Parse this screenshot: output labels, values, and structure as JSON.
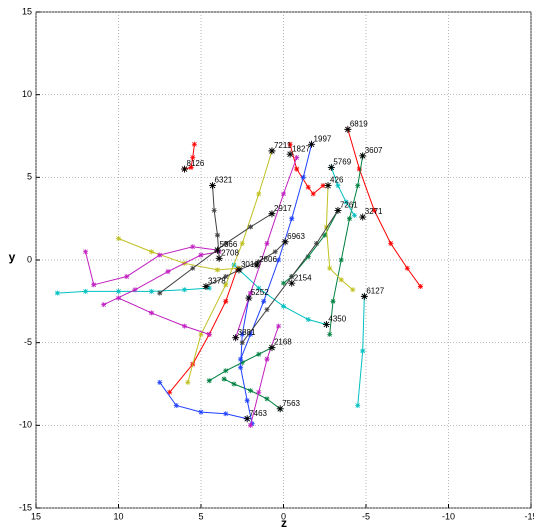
{
  "chart_data": {
    "type": "line",
    "xlabel": "z",
    "ylabel": "y",
    "xlim": [
      15,
      -15
    ],
    "ylim": [
      -15,
      15
    ],
    "xticks": [
      15,
      10,
      5,
      0,
      -5,
      -10,
      -15
    ],
    "yticks": [
      -15,
      -10,
      -5,
      0,
      5,
      10,
      15
    ],
    "grid": true,
    "series": [
      {
        "color": "#ff0000",
        "x": [
          5.4,
          5.5,
          5.6,
          6.0
        ],
        "values": [
          7.0,
          6.2,
          5.6,
          5.5
        ]
      },
      {
        "color": "#ff0000",
        "x": [
          -0.4,
          -0.8,
          -1.5,
          -1.8,
          -2.4
        ],
        "values": [
          7.0,
          5.5,
          4.4,
          4.0,
          4.5
        ]
      },
      {
        "color": "#ff0000",
        "x": [
          -3.9,
          -4.6,
          -5.5,
          -6.5,
          -7.5,
          -8.3
        ],
        "values": [
          7.9,
          5.5,
          3.0,
          1.0,
          -0.5,
          -1.6
        ]
      },
      {
        "color": "#ff0000",
        "x": [
          2.8,
          3.5,
          4.5,
          5.5,
          6.9
        ],
        "values": [
          -0.5,
          -2.5,
          -4.5,
          -6.3,
          -8.0
        ]
      },
      {
        "color": "#008040",
        "x": [
          -4.8,
          -4.5,
          -4.0,
          -3.5,
          -3.0,
          -2.8
        ],
        "values": [
          6.3,
          4.5,
          2.5,
          0.0,
          -2.5,
          -4.5
        ]
      },
      {
        "color": "#008040",
        "x": [
          0.7,
          1.5,
          2.5,
          3.5,
          4.5
        ],
        "values": [
          -5.3,
          -5.7,
          -6.2,
          -6.7,
          -7.3
        ]
      },
      {
        "color": "#008040",
        "x": [
          0.2,
          1.0,
          2.0,
          3.0,
          3.6
        ],
        "values": [
          -9.0,
          -8.4,
          -7.9,
          -7.5,
          -7.2
        ]
      },
      {
        "color": "#008040",
        "x": [
          -3.3,
          -2.5,
          -1.5,
          -0.5,
          0.0
        ],
        "values": [
          3.0,
          1.5,
          0.2,
          -1.0,
          -1.4
        ]
      },
      {
        "color": "#2040ff",
        "x": [
          -1.7,
          -1.2,
          -0.5,
          0.3,
          1.2,
          2.0,
          2.6
        ],
        "values": [
          7.0,
          5.0,
          2.5,
          0.0,
          -2.5,
          -4.5,
          -6.0
        ]
      },
      {
        "color": "#2040ff",
        "x": [
          2.2,
          3.5,
          5.0,
          6.5,
          7.5
        ],
        "values": [
          -9.6,
          -9.3,
          -9.2,
          -8.8,
          -7.4
        ]
      },
      {
        "color": "#2040ff",
        "x": [
          2.1,
          2.5,
          2.6,
          2.2,
          1.9
        ],
        "values": [
          -2.3,
          -4.5,
          -6.5,
          -8.5,
          -9.9
        ]
      },
      {
        "color": "#00c0c0",
        "x": [
          -2.9,
          -3.3,
          -3.8,
          -4.3
        ],
        "values": [
          5.6,
          4.5,
          3.5,
          2.7
        ]
      },
      {
        "color": "#00c0c0",
        "x": [
          -2.6,
          -1.5,
          0.0,
          1.5,
          3.0
        ],
        "values": [
          -3.9,
          -3.6,
          -2.8,
          -1.7,
          -0.3
        ]
      },
      {
        "color": "#00c0c0",
        "x": [
          13.7,
          12,
          10,
          8,
          6,
          4.5
        ],
        "values": [
          -2.0,
          -1.9,
          -1.9,
          -1.9,
          -1.8,
          -1.7
        ]
      },
      {
        "color": "#00c0c0",
        "x": [
          -4.9,
          -4.8,
          -4.5
        ],
        "values": [
          -2.2,
          -5.5,
          -8.8
        ]
      },
      {
        "color": "#c0c020",
        "x": [
          0.7,
          1.5,
          2.5,
          3.5,
          5.0,
          5.8
        ],
        "values": [
          6.6,
          4.0,
          1.0,
          -1.5,
          -4.5,
          -7.4
        ]
      },
      {
        "color": "#c0c020",
        "x": [
          10,
          8,
          6,
          4,
          2.7
        ],
        "values": [
          1.3,
          0.5,
          -0.2,
          -0.6,
          -0.5
        ]
      },
      {
        "color": "#c0c020",
        "x": [
          -2.7,
          -2.6,
          -2.8,
          -3.5,
          -4.2
        ],
        "values": [
          4.5,
          2.0,
          -0.5,
          -1.2,
          -1.8
        ]
      },
      {
        "color": "#c020c0",
        "x": [
          3.9,
          5,
          7,
          9,
          10.9
        ],
        "values": [
          0.5,
          0.3,
          -0.7,
          -1.8,
          -2.7
        ]
      },
      {
        "color": "#c020c0",
        "x": [
          4.0,
          5.5,
          7.5,
          9.5,
          11.5,
          12.0
        ],
        "values": [
          0.6,
          0.8,
          0.3,
          -1.0,
          -1.5,
          0.5
        ]
      },
      {
        "color": "#c020c0",
        "x": [
          2.9,
          2.0,
          1.0,
          0.0,
          -0.8
        ],
        "values": [
          -4.7,
          -2.0,
          1.0,
          4.0,
          6.2
        ]
      },
      {
        "color": "#c020c0",
        "x": [
          2.0,
          1.5,
          1.0,
          0.3
        ],
        "values": [
          -10.0,
          -8.0,
          -6.0,
          -4.0
        ]
      },
      {
        "color": "#c020c0",
        "x": [
          10,
          8,
          6,
          4.5
        ],
        "values": [
          -2.3,
          -3.2,
          -4.0,
          -4.5
        ]
      },
      {
        "color": "#404040",
        "x": [
          4.3,
          4.2,
          4.0,
          3.9
        ],
        "values": [
          4.5,
          3.0,
          1.5,
          0.1
        ]
      },
      {
        "color": "#404040",
        "x": [
          0.7,
          2,
          3.5,
          5.5,
          7.5
        ],
        "values": [
          2.8,
          2.0,
          1.0,
          -0.5,
          -2.0
        ]
      },
      {
        "color": "#404040",
        "x": [
          -3.3,
          -2.0,
          -0.5,
          1.0,
          2.5
        ],
        "values": [
          3.0,
          1.0,
          -1.0,
          -3.0,
          -5.0
        ]
      },
      {
        "color": "#404040",
        "x": [
          -0.1,
          0.5,
          1.5,
          2.7,
          3.5,
          4.7
        ],
        "values": [
          1.1,
          0.5,
          -0.1,
          -0.6,
          -1.0,
          -1.6
        ]
      }
    ],
    "annotations": [
      {
        "text": "6819",
        "x": -3.9,
        "y": 7.9
      },
      {
        "text": "3607",
        "x": -4.8,
        "y": 6.3
      },
      {
        "text": "1997",
        "x": -1.7,
        "y": 7.0
      },
      {
        "text": "7211",
        "x": 0.7,
        "y": 6.6
      },
      {
        "text": "1827",
        "x": -0.4,
        "y": 6.4
      },
      {
        "text": "8126",
        "x": 6.0,
        "y": 5.5
      },
      {
        "text": "6321",
        "x": 4.3,
        "y": 4.5
      },
      {
        "text": "5769",
        "x": -2.9,
        "y": 5.6
      },
      {
        "text": "426",
        "x": -2.7,
        "y": 4.5
      },
      {
        "text": "7261",
        "x": -3.3,
        "y": 3.0
      },
      {
        "text": "3271",
        "x": -4.8,
        "y": 2.6
      },
      {
        "text": "2917",
        "x": 0.7,
        "y": 2.8
      },
      {
        "text": "6963",
        "x": -0.1,
        "y": 1.1
      },
      {
        "text": "5366",
        "x": 4.0,
        "y": 0.6
      },
      {
        "text": "2708",
        "x": 3.9,
        "y": 0.1
      },
      {
        "text": "2806",
        "x": 1.6,
        "y": -0.3
      },
      {
        "text": "3018",
        "x": 2.7,
        "y": -0.6
      },
      {
        "text": "3378",
        "x": 4.7,
        "y": -1.6
      },
      {
        "text": "2154",
        "x": -0.5,
        "y": -1.4
      },
      {
        "text": "6127",
        "x": -4.9,
        "y": -2.2
      },
      {
        "text": "5252",
        "x": 2.1,
        "y": -2.3
      },
      {
        "text": "4350",
        "x": -2.6,
        "y": -3.9
      },
      {
        "text": "3881",
        "x": 2.9,
        "y": -4.7
      },
      {
        "text": "2168",
        "x": 0.7,
        "y": -5.3
      },
      {
        "text": "7563",
        "x": 0.2,
        "y": -9.0
      },
      {
        "text": "7463",
        "x": 2.2,
        "y": -9.6
      }
    ]
  }
}
